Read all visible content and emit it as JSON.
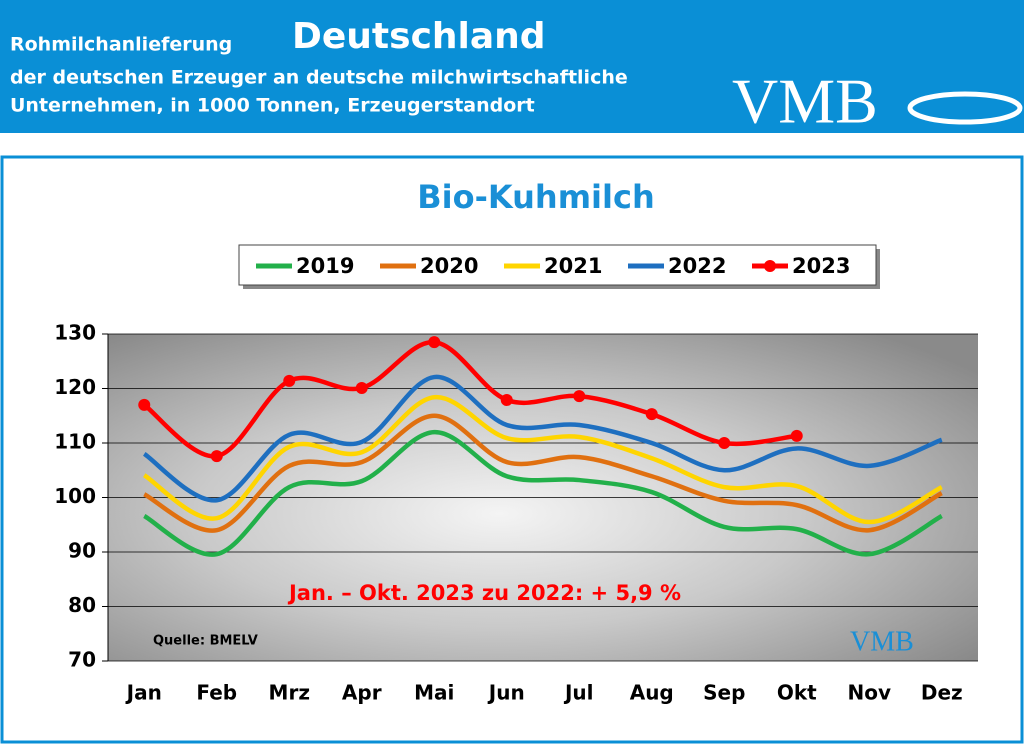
{
  "header": {
    "title_small": "Rohmilchanlieferung",
    "title_big": "Deutschland",
    "line2": "der deutschen Erzeuger an deutsche milchwirtschaftliche",
    "line3": "Unternehmen, in 1000 Tonnen, Erzeugerstandort",
    "logo": "VMB"
  },
  "chart_data": {
    "type": "line",
    "title": "Bio-Kuhmilch",
    "categories": [
      "Jan",
      "Feb",
      "Mrz",
      "Apr",
      "Mai",
      "Jun",
      "Jul",
      "Aug",
      "Sep",
      "Okt",
      "Nov",
      "Dez"
    ],
    "series": [
      {
        "name": "2019",
        "color": "#22b04a",
        "values": [
          96.6,
          89.6,
          101.9,
          103,
          112,
          103.9,
          103.2,
          101,
          94.6,
          94.2,
          89.6,
          96.6
        ]
      },
      {
        "name": "2020",
        "color": "#e07010",
        "values": [
          100.6,
          94,
          105.8,
          106.5,
          115,
          106.5,
          107.4,
          103.9,
          99.4,
          98.6,
          94,
          100.8
        ]
      },
      {
        "name": "2021",
        "color": "#ffd500",
        "values": [
          104.1,
          96.2,
          109.3,
          108.3,
          118.4,
          110.9,
          111.1,
          107.2,
          101.9,
          102.1,
          95.5,
          101.9
        ]
      },
      {
        "name": "2022",
        "color": "#1e6fc0",
        "values": [
          108,
          99.5,
          111.5,
          110.2,
          122.1,
          113.3,
          113.3,
          110,
          105,
          109,
          105.8,
          110.6
        ]
      },
      {
        "name": "2023",
        "color": "#ff0000",
        "markers": true,
        "values": [
          117,
          107.6,
          121.4,
          120.1,
          128.5,
          117.9,
          118.6,
          115.3,
          110,
          111.3,
          null,
          null
        ]
      }
    ],
    "ylim": [
      70,
      130
    ],
    "yticks": [
      70,
      80,
      90,
      100,
      110,
      120,
      130
    ],
    "grid": true,
    "annotation": "Jan. – Okt. 2023 zu 2022: + 5,9 %",
    "source": "Quelle: BMELV",
    "watermark": "VMB"
  }
}
